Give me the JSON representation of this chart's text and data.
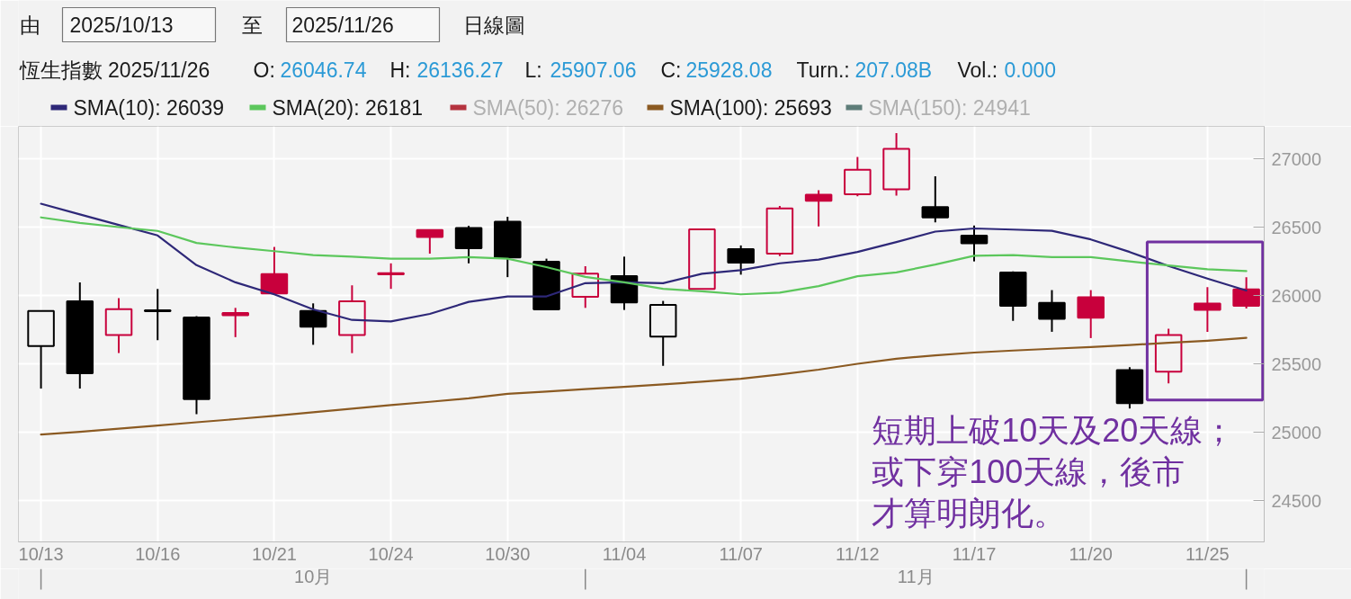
{
  "chart_data": {
    "type": "candlestick",
    "title": "恆生指數 2025/11/26",
    "annotations": [
      "由",
      "2025/10/13",
      "至",
      "2025/11/26",
      "日線圖",
      "O:",
      "26046.74",
      "H:",
      "26136.27",
      "L:",
      "25907.06",
      "C:",
      "25928.08",
      "Turn.:",
      "207.08B",
      "Vol.:",
      "0.000",
      "短期上破10天及20天線；",
      "或下穿100天線，後市",
      "才算明朗化。",
      "10月",
      "11月"
    ],
    "categories": [
      "10/13",
      null,
      null,
      "10/16",
      null,
      null,
      "10/21",
      null,
      null,
      "10/24",
      null,
      null,
      "10/30",
      null,
      null,
      "11/04",
      null,
      null,
      "11/07",
      null,
      null,
      "11/12",
      null,
      null,
      "11/17",
      null,
      null,
      "11/20",
      null,
      null,
      "11/25",
      null
    ],
    "ohlc": [
      [
        25632,
        25890,
        25322,
        25890
      ],
      [
        25960,
        26099,
        25322,
        25433
      ],
      [
        25713,
        25983,
        25581,
        25903
      ],
      [
        25895,
        26051,
        25675,
        25888
      ],
      [
        25841,
        25852,
        25135,
        25245
      ],
      [
        25875,
        25912,
        25698,
        25858
      ],
      [
        26159,
        26358,
        26018,
        26018
      ],
      [
        25890,
        25945,
        25642,
        25775
      ],
      [
        25713,
        26077,
        25581,
        25960
      ],
      [
        26158,
        26238,
        26051,
        26166
      ],
      [
        26481,
        26481,
        26309,
        26431
      ],
      [
        26497,
        26513,
        26238,
        26349
      ],
      [
        26543,
        26579,
        26137,
        26281
      ],
      [
        26250,
        26272,
        25901,
        25901
      ],
      [
        25993,
        26217,
        25912,
        26162
      ],
      [
        26144,
        26287,
        25897,
        25952
      ],
      [
        25702,
        25963,
        25488,
        25934
      ],
      [
        26051,
        26486,
        26051,
        26486
      ],
      [
        26342,
        26369,
        26155,
        26243
      ],
      [
        26309,
        26658,
        26291,
        26640
      ],
      [
        26740,
        26773,
        26508,
        26695
      ],
      [
        26744,
        27016,
        26729,
        26923
      ],
      [
        26779,
        27191,
        26733,
        27076
      ],
      [
        26650,
        26875,
        26538,
        26573
      ],
      [
        26440,
        26515,
        26252,
        26385
      ],
      [
        26170,
        26179,
        25817,
        25927
      ],
      [
        25948,
        26042,
        25737,
        25832
      ],
      [
        25989,
        26042,
        25691,
        25840
      ],
      [
        25456,
        25478,
        25176,
        25215
      ],
      [
        25446,
        25760,
        25360,
        25714
      ],
      [
        25943,
        26064,
        25737,
        25897
      ],
      [
        26046.74,
        26136.27,
        25907.06,
        25928.08
      ]
    ],
    "colors": [
      "#000000",
      "#000000",
      "#c8003c",
      "#000000",
      "#000000",
      "#c8003c",
      "#c8003c",
      "#000000",
      "#c8003c",
      "#c8003c",
      "#c8003c",
      "#000000",
      "#000000",
      "#000000",
      "#c8003c",
      "#000000",
      "#000000",
      "#c8003c",
      "#000000",
      "#c8003c",
      "#c8003c",
      "#c8003c",
      "#c8003c",
      "#000000",
      "#000000",
      "#000000",
      "#000000",
      "#c8003c",
      "#000000",
      "#c8003c",
      "#c8003c",
      "#c8003c"
    ],
    "series": [
      {
        "name": "SMA(10): 26039",
        "type": "line",
        "color": "#2e2878",
        "values": [
          26674,
          26596,
          26519,
          26442,
          26225,
          26099,
          26011,
          25901,
          25824,
          25813,
          25868,
          25956,
          25996,
          25996,
          26093,
          26099,
          26093,
          26162,
          26188,
          26238,
          26265,
          26321,
          26394,
          26470,
          26493,
          26485,
          26476,
          26413,
          26321,
          26218,
          26126,
          26039
        ]
      },
      {
        "name": "SMA(20): 26181",
        "type": "line",
        "color": "#5cc75c",
        "values": [
          26574,
          26534,
          26503,
          26475,
          26387,
          26354,
          26327,
          26298,
          26287,
          26272,
          26272,
          26283,
          26272,
          26210,
          26139,
          26099,
          26051,
          26033,
          26011,
          26023,
          26071,
          26144,
          26172,
          26229,
          26293,
          26298,
          26284,
          26284,
          26252,
          26223,
          26195,
          26181
        ]
      },
      {
        "name": "SMA(50): 26276",
        "type": "line",
        "color": "#b5333f",
        "values": [
          null,
          null,
          null,
          null,
          null,
          null,
          null,
          null,
          null,
          null,
          null,
          null,
          null,
          null,
          null,
          null,
          null,
          null,
          null,
          null,
          null,
          null,
          null,
          null,
          null,
          null,
          null,
          null,
          null,
          null,
          null,
          null
        ]
      },
      {
        "name": "SMA(100): 25693",
        "type": "line",
        "color": "#8b5a22",
        "values": [
          24985,
          25005,
          25028,
          25051,
          25075,
          25098,
          25122,
          25148,
          25175,
          25201,
          25225,
          25250,
          25283,
          25300,
          25318,
          25334,
          25352,
          25372,
          25393,
          25425,
          25460,
          25503,
          25540,
          25565,
          25585,
          25600,
          25613,
          25625,
          25640,
          25657,
          25672,
          25693
        ]
      },
      {
        "name": "SMA(150): 24941",
        "type": "line",
        "color": "#5e7d79",
        "values": [
          null,
          null,
          null,
          null,
          null,
          null,
          null,
          null,
          null,
          null,
          null,
          null,
          null,
          null,
          null,
          null,
          null,
          null,
          null,
          null,
          null,
          null,
          null,
          null,
          null,
          null,
          null,
          null,
          null,
          null,
          null,
          null
        ]
      }
    ],
    "ylim": [
      24200,
      27240
    ],
    "yticks": [
      24500,
      25000,
      25500,
      26000,
      26500,
      27000
    ],
    "grid": true,
    "legend": "top left"
  }
}
